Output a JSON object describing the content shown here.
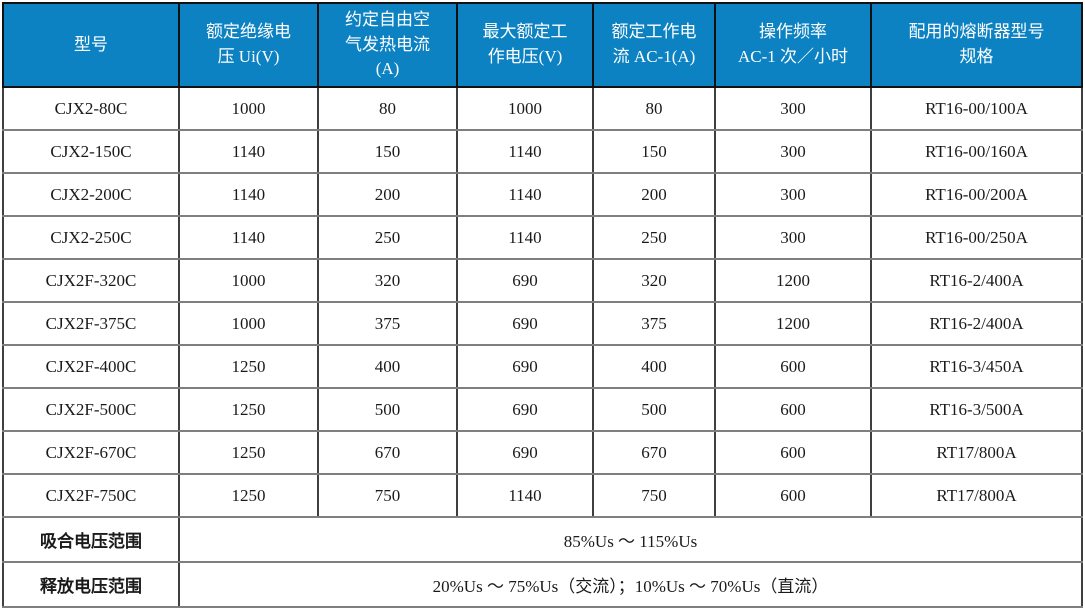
{
  "colors": {
    "header_background": "#0d82c3",
    "header_text": "#ffffff",
    "body_text": "#1a1a1a",
    "outer_border": "#141414",
    "grid_vertical": "#3f3f3f",
    "grid_horizontal": "#7f7f7f"
  },
  "table": {
    "columns": [
      {
        "name": "model",
        "label": "型号"
      },
      {
        "name": "rated-insulation-voltage",
        "label": "额定绝缘电\n压 Ui(V)"
      },
      {
        "name": "conventional-free-air-thermal-current",
        "label": "约定自由空\n气发热电流\n(A)"
      },
      {
        "name": "max-rated-working-voltage",
        "label": "最大额定工\n作电压(V)"
      },
      {
        "name": "rated-working-current-ac1",
        "label": "额定工作电\n流 AC-1(A)"
      },
      {
        "name": "operating-frequency",
        "label": "操作频率\nAC-1 次／小时"
      },
      {
        "name": "matching-fuse-spec",
        "label": "配用的熔断器型号\n规格"
      }
    ],
    "rows": [
      [
        "CJX2-80C",
        "1000",
        "80",
        "1000",
        "80",
        "300",
        "RT16-00/100A"
      ],
      [
        "CJX2-150C",
        "1140",
        "150",
        "1140",
        "150",
        "300",
        "RT16-00/160A"
      ],
      [
        "CJX2-200C",
        "1140",
        "200",
        "1140",
        "200",
        "300",
        "RT16-00/200A"
      ],
      [
        "CJX2-250C",
        "1140",
        "250",
        "1140",
        "250",
        "300",
        "RT16-00/250A"
      ],
      [
        "CJX2F-320C",
        "1000",
        "320",
        "690",
        "320",
        "1200",
        "RT16-2/400A"
      ],
      [
        "CJX2F-375C",
        "1000",
        "375",
        "690",
        "375",
        "1200",
        "RT16-2/400A"
      ],
      [
        "CJX2F-400C",
        "1250",
        "400",
        "690",
        "400",
        "600",
        "RT16-3/450A"
      ],
      [
        "CJX2F-500C",
        "1250",
        "500",
        "690",
        "500",
        "600",
        "RT16-3/500A"
      ],
      [
        "CJX2F-670C",
        "1250",
        "670",
        "690",
        "670",
        "600",
        "RT17/800A"
      ],
      [
        "CJX2F-750C",
        "1250",
        "750",
        "1140",
        "750",
        "600",
        "RT17/800A"
      ]
    ],
    "footer_rows": [
      {
        "name": "pull-in-voltage-range",
        "label": "吸合电压范围",
        "value": "85%Us ～ 115%Us"
      },
      {
        "name": "release-voltage-range",
        "label": "释放电压范围",
        "value": "20%Us ～ 75%Us（交流）；10%Us ～ 70%Us（直流）"
      }
    ]
  }
}
